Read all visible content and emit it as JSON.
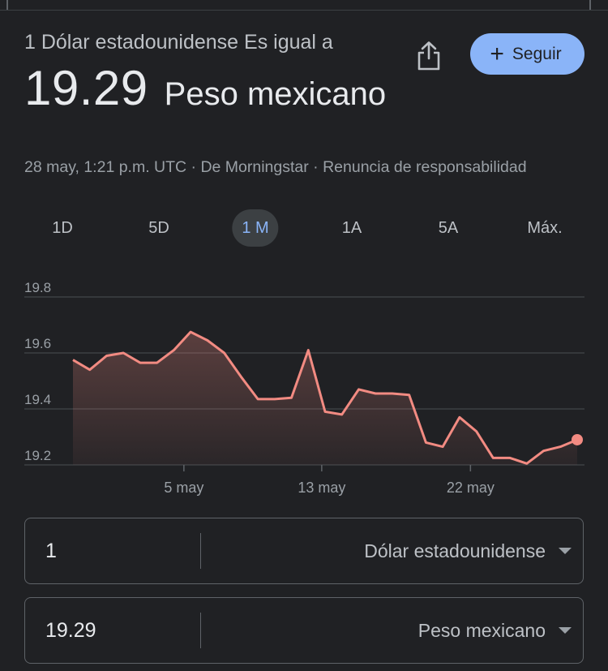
{
  "header": {
    "equivalence_text": "1 Dólar estadounidense Es igual a",
    "rate_value": "19.29",
    "rate_currency": "Peso mexicano",
    "follow_label": "Seguir",
    "meta_text": "28 may, 1:21 p.m. UTC · De Morningstar · Renuncia de responsabilidad"
  },
  "tabs": [
    {
      "label": "1D",
      "active": false
    },
    {
      "label": "5D",
      "active": false
    },
    {
      "label": "1 M",
      "active": true
    },
    {
      "label": "1A",
      "active": false
    },
    {
      "label": "5A",
      "active": false
    },
    {
      "label": "Máx.",
      "active": false
    }
  ],
  "chart_data": {
    "type": "area",
    "ylim": [
      19.2,
      19.8
    ],
    "yticks": [
      "19.8",
      "19.6",
      "19.4",
      "19.2"
    ],
    "xticks": [
      "5 may",
      "13 may",
      "22 may"
    ],
    "grid": true,
    "line_color": "#f28b82",
    "series": [
      {
        "values": [
          19.575,
          19.54,
          19.59,
          19.6,
          19.565,
          19.565,
          19.61,
          19.675,
          19.645,
          19.6,
          19.515,
          19.435,
          19.435,
          19.44,
          19.61,
          19.39,
          19.38,
          19.47,
          19.455,
          19.455,
          19.45,
          19.28,
          19.265,
          19.37,
          19.32,
          19.225,
          19.225,
          19.205,
          19.25,
          19.265,
          19.29
        ]
      }
    ]
  },
  "converter": {
    "from_value": "1",
    "from_currency": "Dólar estadounidense",
    "to_value": "19.29",
    "to_currency": "Peso mexicano"
  },
  "colors": {
    "accent": "#8ab4f8",
    "chart_line": "#f28b82",
    "background": "#202124"
  }
}
